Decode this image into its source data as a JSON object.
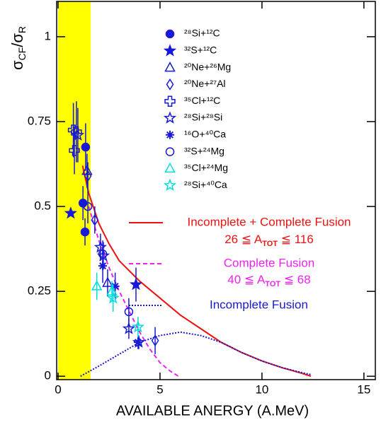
{
  "chart_data": {
    "type": "scatter",
    "xlabel": "AVAILABLE ANERGY (A.MeV)",
    "ylabel": [
      "σ",
      "CF",
      "/σ",
      "R"
    ],
    "xlim": [
      -0.07,
      15.56
    ],
    "ylim": [
      -0.01,
      1.104
    ],
    "xticks": [
      0,
      5,
      10,
      15
    ],
    "yticks": [
      0,
      0.25,
      0.5,
      0.75,
      1
    ],
    "shaded_region": {
      "xlim": [
        0,
        1.6
      ],
      "color": "#ffff00"
    },
    "series": [
      {
        "name": "²⁸Si+¹²C",
        "marker": "circle",
        "filled": true,
        "color": "#1818d8",
        "x": [
          1.35,
          1.22,
          1.32
        ],
        "values": [
          0.675,
          0.51,
          0.425
        ],
        "errors": [
          0.07,
          0.05,
          0.04
        ]
      },
      {
        "name": "³²S+¹²C",
        "marker": "star",
        "filled": true,
        "color": "#1818d8",
        "x": [
          0.62,
          3.82
        ],
        "values": [
          0.48,
          0.27
        ],
        "errors": [
          0,
          0.05
        ]
      },
      {
        "name": "²⁰Ne+²⁶Mg",
        "marker": "triangle",
        "filled": false,
        "color": "#1818d8",
        "x": [
          1.42,
          2.43
        ],
        "values": [
          0.605,
          0.275
        ],
        "errors": [
          0.05,
          0.04
        ]
      },
      {
        "name": "²⁰Ne+²⁷Al",
        "marker": "diamond",
        "filled": false,
        "color": "#1818d8",
        "x": [
          1.46,
          1.8,
          4.76
        ],
        "values": [
          0.59,
          0.46,
          0.105
        ],
        "errors": [
          0.04,
          0.04,
          0.04
        ]
      },
      {
        "name": "³⁵Cl+¹²C",
        "marker": "cross",
        "filled": false,
        "color": "#1818d8",
        "x": [
          0.75,
          0.8,
          0.9
        ],
        "values": [
          0.725,
          0.665,
          0.72
        ],
        "errors": [
          0.08,
          0.07,
          0.09
        ]
      },
      {
        "name": "²⁸Si+²⁸Si",
        "marker": "star",
        "filled": false,
        "color": "#1818d8",
        "x": [
          0.97,
          2.22,
          3.47,
          2.08,
          3.96
        ],
        "values": [
          0.71,
          0.355,
          0.14,
          0.38,
          0.1
        ],
        "errors": [
          0.08,
          0.04,
          0.03,
          0.04,
          0.02
        ]
      },
      {
        "name": "¹⁶O+⁴⁰Ca",
        "marker": "asterisk",
        "filled": false,
        "color": "#1818d8",
        "x": [
          2.19,
          3.92,
          2.8
        ],
        "values": [
          0.325,
          0.1,
          0.265
        ],
        "errors": [
          0.05,
          0.02,
          0.04
        ]
      },
      {
        "name": "³²S+²⁴Mg",
        "marker": "circle",
        "filled": false,
        "color": "#1818d8",
        "x": [
          1.46,
          2.19,
          3.47
        ],
        "values": [
          0.5,
          0.36,
          0.19
        ],
        "errors": [
          0.05,
          0.04,
          0.04
        ]
      },
      {
        "name": "³⁵Cl+²⁴Mg",
        "marker": "triangle",
        "filled": false,
        "color": "#00dede",
        "x": [
          1.9,
          2.64
        ],
        "values": [
          0.265,
          0.25
        ],
        "errors": [
          0.04,
          0.03
        ]
      },
      {
        "name": "²⁸Si+⁴⁰Ca",
        "marker": "star",
        "filled": false,
        "color": "#00dede",
        "x": [
          2.7,
          3.92
        ],
        "values": [
          0.23,
          0.145
        ],
        "errors": [
          0.04,
          0.03
        ]
      }
    ],
    "curves": [
      {
        "name": "Incomplete + Complete Fusion",
        "range_label": [
          "26 ≦ A",
          "TOT",
          " ≦ 116"
        ],
        "color": "#ee1111",
        "dash": "none",
        "x": [
          1.2,
          1.5,
          2,
          2.5,
          3,
          4,
          5,
          6,
          7,
          8,
          9,
          10,
          11,
          12,
          12.4
        ],
        "values": [
          0.62,
          0.54,
          0.45,
          0.39,
          0.34,
          0.28,
          0.23,
          0.18,
          0.14,
          0.1,
          0.07,
          0.045,
          0.025,
          0.008,
          0
        ]
      },
      {
        "name": "Complete Fusion",
        "range_label": [
          "40 ≦ A",
          "TOT",
          " ≦ 68"
        ],
        "color": "#ee22ee",
        "dash": "6,4",
        "x": [
          1.5,
          2,
          2.5,
          3,
          3.5,
          4,
          4.5,
          5,
          5.5,
          5.9
        ],
        "values": [
          0.5,
          0.4,
          0.32,
          0.25,
          0.19,
          0.13,
          0.08,
          0.04,
          0.015,
          0
        ]
      },
      {
        "name": "Incomplete Fusion",
        "color": "#1818d8",
        "dash": "2,2",
        "x": [
          1.1,
          2,
          3,
          4,
          5,
          6,
          7,
          8,
          9,
          10,
          11,
          12,
          12.4
        ],
        "values": [
          0,
          0.03,
          0.065,
          0.1,
          0.12,
          0.13,
          0.12,
          0.1,
          0.07,
          0.045,
          0.025,
          0.01,
          0.005
        ]
      }
    ]
  }
}
